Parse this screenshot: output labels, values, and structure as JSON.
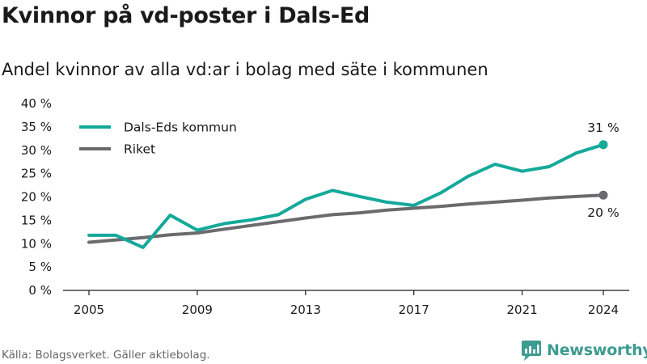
{
  "header": {
    "title": "Kvinnor på vd-poster i Dals-Ed",
    "subtitle": "Andel kvinnor av alla vd:ar i bolag med säte i kommunen"
  },
  "footer": {
    "source": "Källa: Bolagsverket. Gäller aktiebolag.",
    "brand": "Newsworthy"
  },
  "colors": {
    "dals_ed": "#14a99a",
    "riket": "#6b6a6e",
    "brand": "#3d9b91",
    "axis": "#1a1a1a"
  },
  "chart_data": {
    "type": "line",
    "title": "Kvinnor på vd-poster i Dals-Ed",
    "subtitle": "Andel kvinnor av alla vd:ar i bolag med säte i kommunen",
    "xlabel": "",
    "ylabel": "",
    "xlim": [
      2005,
      2024
    ],
    "ylim": [
      0,
      40
    ],
    "x_ticks": [
      2005,
      2009,
      2013,
      2017,
      2021,
      2024
    ],
    "y_ticks": [
      0,
      5,
      10,
      15,
      20,
      25,
      30,
      35,
      40
    ],
    "y_tick_labels": [
      "0 %",
      "5 %",
      "10 %",
      "15 %",
      "20 %",
      "25 %",
      "30 %",
      "35 %",
      "40 %"
    ],
    "grid": false,
    "legend_position": "top-left",
    "x": [
      2005,
      2006,
      2007,
      2008,
      2009,
      2010,
      2011,
      2012,
      2013,
      2014,
      2015,
      2016,
      2017,
      2018,
      2019,
      2020,
      2021,
      2022,
      2023,
      2024
    ],
    "series": [
      {
        "name": "Dals-Eds kommun",
        "color": "#14a99a",
        "values": [
          11.8,
          11.8,
          9.2,
          16.1,
          12.9,
          14.3,
          15.1,
          16.2,
          19.5,
          21.4,
          20.1,
          18.9,
          18.2,
          20.9,
          24.4,
          27.0,
          25.5,
          26.5,
          29.4,
          31.2
        ],
        "end_label": "31 %"
      },
      {
        "name": "Riket",
        "color": "#6b6a6e",
        "values": [
          10.3,
          10.8,
          11.3,
          11.9,
          12.3,
          13.1,
          13.9,
          14.7,
          15.5,
          16.2,
          16.6,
          17.2,
          17.6,
          18.0,
          18.5,
          18.9,
          19.3,
          19.8,
          20.1,
          20.4
        ],
        "end_label": "20 %"
      }
    ]
  }
}
